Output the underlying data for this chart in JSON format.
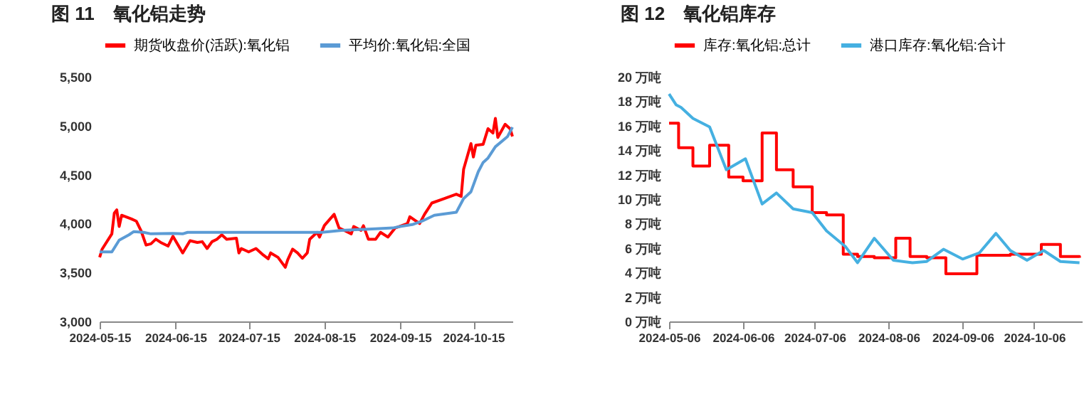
{
  "chart_data": [
    {
      "type": "line",
      "title": "图 11　氧化铝走势",
      "legend": "top",
      "xlim": [
        "2024-05-15",
        "2024-10-31"
      ],
      "xticks": [
        "2024-05-15",
        "2024-06-15",
        "2024-07-15",
        "2024-08-15",
        "2024-09-15",
        "2024-10-15"
      ],
      "ylim": [
        3000,
        5500
      ],
      "yticks": [
        {
          "value": 3000,
          "label": "3,000"
        },
        {
          "value": 3500,
          "label": "3,500"
        },
        {
          "value": 4000,
          "label": "4,000"
        },
        {
          "value": 4500,
          "label": "4,500"
        },
        {
          "value": 5000,
          "label": "5,000"
        },
        {
          "value": 5500,
          "label": "5,500"
        }
      ],
      "series": [
        {
          "name": "期货收盘价(活跃):氧化铝",
          "color": "#ff0000",
          "x": [
            "2024-05-15",
            "2024-05-16",
            "2024-05-20",
            "2024-05-21",
            "2024-05-22",
            "2024-05-23",
            "2024-05-24",
            "2024-05-28",
            "2024-05-30",
            "2024-06-01",
            "2024-06-03",
            "2024-06-05",
            "2024-06-07",
            "2024-06-09",
            "2024-06-12",
            "2024-06-14",
            "2024-06-18",
            "2024-06-21",
            "2024-06-24",
            "2024-06-26",
            "2024-06-28",
            "2024-06-30",
            "2024-07-02",
            "2024-07-04",
            "2024-07-06",
            "2024-07-10",
            "2024-07-11",
            "2024-07-12",
            "2024-07-15",
            "2024-07-18",
            "2024-07-21",
            "2024-07-23",
            "2024-07-24",
            "2024-07-27",
            "2024-07-30",
            "2024-07-31",
            "2024-08-02",
            "2024-08-04",
            "2024-08-06",
            "2024-08-08",
            "2024-08-09",
            "2024-08-12",
            "2024-08-13",
            "2024-08-15",
            "2024-08-19",
            "2024-08-21",
            "2024-08-23",
            "2024-08-26",
            "2024-08-27",
            "2024-08-30",
            "2024-08-31",
            "2024-09-02",
            "2024-09-05",
            "2024-09-07",
            "2024-09-10",
            "2024-09-13",
            "2024-09-18",
            "2024-09-19",
            "2024-09-23",
            "2024-09-25",
            "2024-09-28",
            "2024-10-03",
            "2024-10-08",
            "2024-10-10",
            "2024-10-11",
            "2024-10-14",
            "2024-10-15",
            "2024-10-16",
            "2024-10-19",
            "2024-10-21",
            "2024-10-23",
            "2024-10-24",
            "2024-10-25",
            "2024-10-28",
            "2024-10-30",
            "2024-10-31"
          ],
          "values": [
            3655,
            3738,
            3895,
            4107,
            4140,
            3970,
            4085,
            4047,
            4025,
            3923,
            3780,
            3793,
            3840,
            3807,
            3770,
            3870,
            3700,
            3825,
            3807,
            3815,
            3745,
            3815,
            3840,
            3885,
            3840,
            3850,
            3700,
            3745,
            3710,
            3745,
            3678,
            3640,
            3700,
            3655,
            3553,
            3630,
            3738,
            3700,
            3645,
            3700,
            3840,
            3910,
            3862,
            3980,
            4095,
            3955,
            3932,
            3895,
            3970,
            3930,
            3978,
            3840,
            3840,
            3910,
            3862,
            3955,
            4000,
            4070,
            4000,
            4095,
            4210,
            4255,
            4300,
            4278,
            4555,
            4817,
            4680,
            4800,
            4810,
            4970,
            4925,
            5075,
            4880,
            5015,
            4970,
            4890
          ]
        },
        {
          "name": "平均价:氧化铝:全国",
          "color": "#5b9bd5",
          "x": [
            "2024-05-15",
            "2024-05-20",
            "2024-05-23",
            "2024-05-27",
            "2024-05-29",
            "2024-06-02",
            "2024-06-05",
            "2024-06-14",
            "2024-06-18",
            "2024-06-20",
            "2024-08-14",
            "2024-08-22",
            "2024-09-12",
            "2024-09-15",
            "2024-09-20",
            "2024-09-24",
            "2024-09-29",
            "2024-10-08",
            "2024-10-11",
            "2024-10-14",
            "2024-10-17",
            "2024-10-19",
            "2024-10-21",
            "2024-10-24",
            "2024-10-29",
            "2024-10-31"
          ],
          "values": [
            3710,
            3710,
            3830,
            3885,
            3918,
            3910,
            3895,
            3900,
            3895,
            3910,
            3910,
            3930,
            3955,
            3970,
            3990,
            4025,
            4085,
            4115,
            4255,
            4325,
            4530,
            4625,
            4670,
            4785,
            4890,
            4985
          ]
        }
      ]
    },
    {
      "type": "line",
      "title": "图 12　氧化铝库存",
      "legend": "top",
      "xlim": [
        "2024-05-06",
        "2024-10-26"
      ],
      "xticks": [
        "2024-05-06",
        "2024-06-06",
        "2024-07-06",
        "2024-08-06",
        "2024-09-06",
        "2024-10-06"
      ],
      "ylim": [
        0,
        20
      ],
      "yticks": [
        {
          "value": 0,
          "label": "0 万吨"
        },
        {
          "value": 2,
          "label": "2 万吨"
        },
        {
          "value": 4,
          "label": "4 万吨"
        },
        {
          "value": 6,
          "label": "6 万吨"
        },
        {
          "value": 8,
          "label": "8 万吨"
        },
        {
          "value": 10,
          "label": "10 万吨"
        },
        {
          "value": 12,
          "label": "12 万吨"
        },
        {
          "value": 14,
          "label": "14 万吨"
        },
        {
          "value": 16,
          "label": "16 万吨"
        },
        {
          "value": 18,
          "label": "18 万吨"
        },
        {
          "value": 20,
          "label": "20 万吨"
        }
      ],
      "series": [
        {
          "name": "库存:氧化铝:总计",
          "color": "#ff0000",
          "type": "step",
          "x": [
            "2024-05-06",
            "2024-05-10",
            "2024-05-16",
            "2024-05-23",
            "2024-05-31",
            "2024-06-06",
            "2024-06-14",
            "2024-06-20",
            "2024-06-27",
            "2024-07-05",
            "2024-07-11",
            "2024-07-18",
            "2024-07-24",
            "2024-07-31",
            "2024-08-09",
            "2024-08-15",
            "2024-08-22",
            "2024-08-30",
            "2024-09-12",
            "2024-09-26",
            "2024-10-09",
            "2024-10-17",
            "2024-10-25"
          ],
          "values": [
            16.2,
            14.2,
            12.7,
            14.4,
            11.8,
            11.5,
            15.4,
            12.4,
            11.0,
            8.9,
            8.7,
            5.5,
            5.3,
            5.2,
            6.8,
            5.3,
            5.2,
            3.9,
            5.4,
            5.5,
            6.3,
            5.3,
            5.2
          ]
        },
        {
          "name": "港口库存:氧化铝:合计",
          "color": "#45b0e1",
          "x": [
            "2024-05-06",
            "2024-05-09",
            "2024-05-11",
            "2024-05-16",
            "2024-05-23",
            "2024-05-30",
            "2024-06-07",
            "2024-06-14",
            "2024-06-20",
            "2024-06-27",
            "2024-07-05",
            "2024-07-11",
            "2024-07-19",
            "2024-07-24",
            "2024-07-31",
            "2024-08-08",
            "2024-08-16",
            "2024-08-22",
            "2024-08-29",
            "2024-09-06",
            "2024-09-13",
            "2024-09-20",
            "2024-09-26",
            "2024-10-03",
            "2024-10-10",
            "2024-10-17",
            "2024-10-25"
          ],
          "values": [
            18.6,
            17.7,
            17.5,
            16.6,
            15.9,
            12.4,
            13.3,
            9.6,
            10.5,
            9.2,
            8.9,
            7.4,
            6.1,
            4.8,
            6.8,
            5.0,
            4.8,
            4.9,
            5.9,
            5.1,
            5.6,
            7.2,
            5.8,
            5.0,
            5.8,
            4.9,
            4.8
          ]
        }
      ]
    }
  ]
}
